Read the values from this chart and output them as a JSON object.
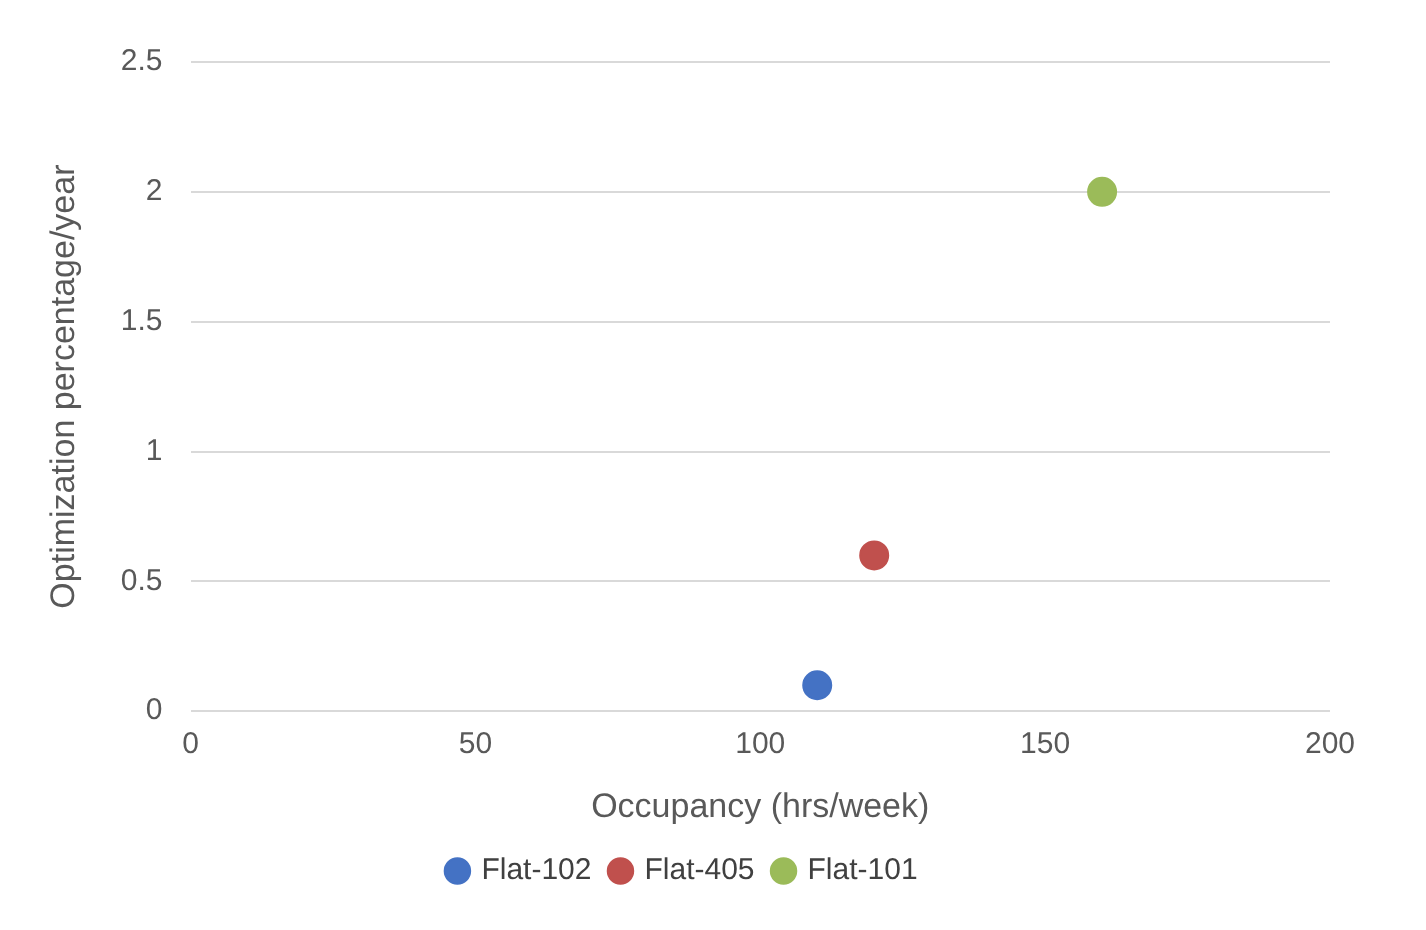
{
  "chart_data": {
    "type": "scatter",
    "xlabel": "Occupancy (hrs/week)",
    "ylabel": "Optimization percentage/year",
    "series": [
      {
        "name": "Flat-102",
        "color": "#4472c4",
        "x": [
          110
        ],
        "values": [
          0.1
        ]
      },
      {
        "name": "Flat-405",
        "color": "#c0504d",
        "x": [
          120
        ],
        "values": [
          0.6
        ]
      },
      {
        "name": "Flat-101",
        "color": "#9bbb59",
        "x": [
          160
        ],
        "values": [
          2
        ]
      }
    ],
    "xlim": [
      0,
      200
    ],
    "xticks": [
      0,
      50,
      100,
      150,
      200
    ],
    "ylim": [
      0,
      2.5
    ],
    "yticks": [
      0,
      0.5,
      1,
      1.5,
      2,
      2.5
    ],
    "grid": "y",
    "legend": "bottom",
    "marker": "circle"
  }
}
